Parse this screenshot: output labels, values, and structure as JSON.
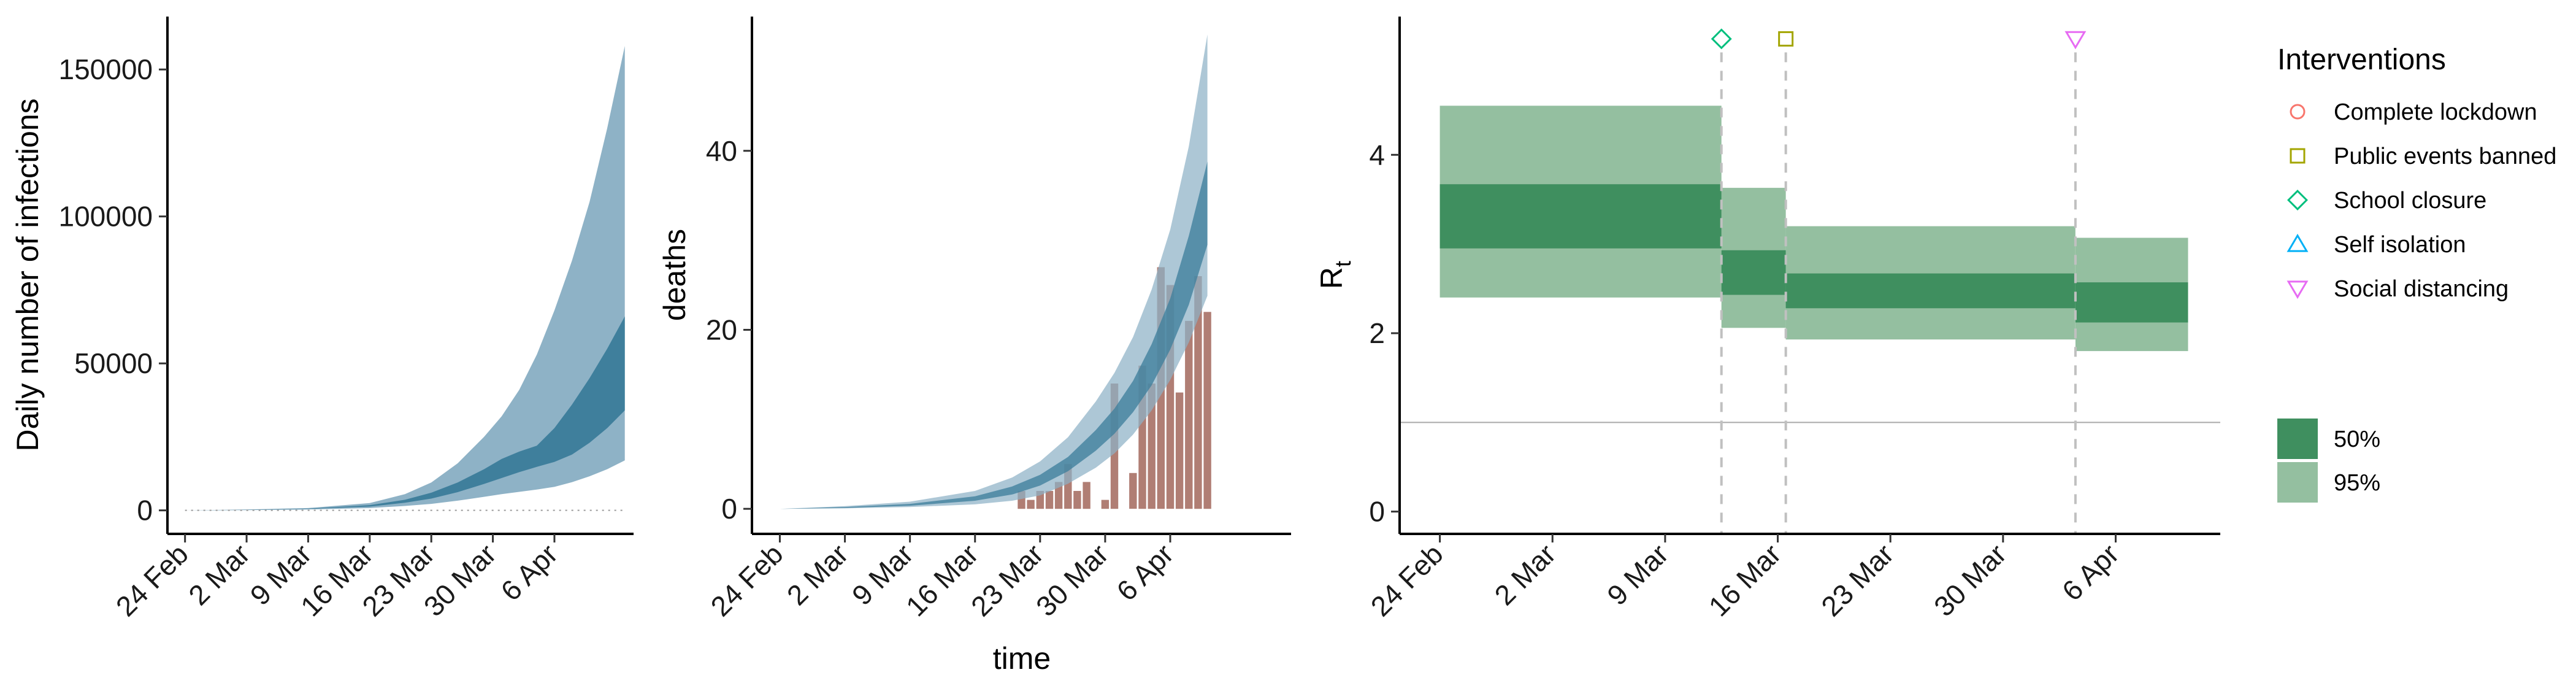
{
  "colors": {
    "band95_blue": "#8eb2c6",
    "band50_blue": "#3f7f9c",
    "observed_bar": "#b07e74",
    "rt50": "#3f8f5f",
    "rt95": "#94bfa0",
    "intervention_line": "#c0c0c0",
    "reference_line": "#a9a9a9",
    "complete_lockdown": "#f8766d",
    "public_events_banned": "#a3a500",
    "school_closure": "#00bf7d",
    "self_isolation": "#00b0f6",
    "social_distancing": "#e76bf3"
  },
  "chart_data": [
    {
      "type": "area",
      "title": "",
      "xlabel": "",
      "ylabel": "Daily number of infections",
      "x_tick_labels": [
        "24 Feb",
        "2 Mar",
        "9 Mar",
        "16 Mar",
        "23 Mar",
        "30 Mar",
        "6 Apr"
      ],
      "x_tick_days": [
        0,
        7,
        14,
        21,
        28,
        35,
        42
      ],
      "y_ticks": [
        0,
        50000,
        100000,
        150000
      ],
      "y_tick_labels": [
        "0",
        "50000",
        "100000",
        "150000"
      ],
      "xlim_days": [
        -2,
        51
      ],
      "ylim": [
        -8000,
        168000
      ],
      "x_days": [
        0,
        7,
        14,
        21,
        25,
        28,
        31,
        34,
        36,
        38,
        40,
        42,
        44,
        46,
        48,
        50
      ],
      "band95": {
        "lower": [
          0,
          100,
          300,
          800,
          1500,
          2200,
          3300,
          4600,
          5500,
          6300,
          7100,
          8000,
          9600,
          11600,
          14000,
          17000
        ],
        "upper": [
          0,
          300,
          800,
          2500,
          5500,
          9500,
          16000,
          25000,
          32000,
          41000,
          53000,
          68000,
          85000,
          105000,
          130000,
          158000
        ]
      },
      "band50": {
        "lower": [
          0,
          150,
          500,
          1300,
          2600,
          4000,
          6200,
          9000,
          11000,
          13000,
          14800,
          16500,
          19000,
          23000,
          28000,
          34000
        ],
        "upper": [
          0,
          200,
          600,
          1800,
          3600,
          6000,
          9500,
          14000,
          17500,
          20000,
          22000,
          28000,
          36000,
          45000,
          55000,
          66000
        ]
      }
    },
    {
      "type": "bar",
      "title": "",
      "xlabel": "time",
      "ylabel": "deaths",
      "x_tick_labels": [
        "24 Feb",
        "2 Mar",
        "9 Mar",
        "16 Mar",
        "23 Mar",
        "30 Mar",
        "6 Apr"
      ],
      "x_tick_days": [
        0,
        7,
        14,
        21,
        28,
        35,
        42
      ],
      "y_ticks": [
        0,
        20,
        40
      ],
      "y_tick_labels": [
        "0",
        "20",
        "40"
      ],
      "xlim_days": [
        -3,
        55
      ],
      "ylim": [
        -2.8,
        55
      ],
      "observed_deaths": {
        "days": [
          26,
          27,
          28,
          29,
          30,
          31,
          32,
          33,
          34,
          35,
          36,
          37,
          38,
          39,
          40,
          41,
          42,
          43,
          44,
          45,
          46
        ],
        "values": [
          2,
          1,
          2,
          2,
          3,
          5,
          2,
          3,
          0,
          1,
          14,
          0,
          4,
          16,
          14,
          27,
          25,
          13,
          21,
          26,
          22
        ]
      },
      "x_days": [
        0,
        7,
        14,
        21,
        25,
        28,
        31,
        34,
        36,
        38,
        40,
        42,
        44,
        46
      ],
      "band95": {
        "lower": [
          0,
          0.05,
          0.2,
          0.5,
          0.9,
          1.5,
          2.8,
          4.6,
          6.2,
          8.3,
          11,
          14.4,
          18.6,
          23.8
        ],
        "upper": [
          0,
          0.3,
          0.8,
          2,
          3.5,
          5.3,
          8,
          12,
          15.2,
          19.2,
          24.5,
          31.2,
          40.5,
          53
        ]
      },
      "band50": {
        "lower": [
          0,
          0.1,
          0.35,
          0.9,
          1.6,
          2.6,
          4.2,
          6.5,
          8.4,
          10.8,
          13.8,
          17.8,
          22.8,
          29.5
        ],
        "upper": [
          0,
          0.2,
          0.55,
          1.4,
          2.5,
          3.8,
          5.8,
          8.8,
          11.2,
          14.3,
          18.4,
          23.5,
          30.5,
          38.8
        ]
      }
    },
    {
      "type": "area",
      "title": "",
      "xlabel": "",
      "ylabel": "R",
      "ylabel_subscript": "t",
      "x_tick_labels": [
        "24 Feb",
        "2 Mar",
        "9 Mar",
        "16 Mar",
        "23 Mar",
        "30 Mar",
        "6 Apr"
      ],
      "x_tick_days": [
        0,
        7,
        14,
        21,
        28,
        35,
        42
      ],
      "y_ticks": [
        0,
        2,
        4
      ],
      "y_tick_labels": [
        "0",
        "2",
        "4"
      ],
      "xlim_days": [
        -2.5,
        48.5
      ],
      "ylim": [
        -0.25,
        5.55
      ],
      "reference_line_y": 1,
      "segments": [
        {
          "start": 0.0,
          "end": 17.5,
          "q95": [
            2.4,
            4.55
          ],
          "q50": [
            2.95,
            3.67
          ]
        },
        {
          "start": 17.5,
          "end": 21.5,
          "q95": [
            2.06,
            3.63
          ],
          "q50": [
            2.43,
            2.93
          ]
        },
        {
          "start": 21.5,
          "end": 39.5,
          "q95": [
            1.93,
            3.2
          ],
          "q50": [
            2.28,
            2.67
          ]
        },
        {
          "start": 39.5,
          "end": 46.5,
          "q95": [
            1.8,
            3.07
          ],
          "q50": [
            2.12,
            2.57
          ]
        }
      ],
      "interventions": [
        {
          "day": 17.5,
          "marker": "diamond",
          "color_key": "school_closure"
        },
        {
          "day": 21.5,
          "marker": "square",
          "color_key": "public_events_banned"
        },
        {
          "day": 39.5,
          "marker": "triangle-down",
          "color_key": "social_distancing"
        }
      ],
      "marker_y": 5.3
    }
  ],
  "legend": {
    "title": "Interventions",
    "items": [
      {
        "label": "Complete lockdown",
        "marker": "circle",
        "color_key": "complete_lockdown"
      },
      {
        "label": "Public events banned",
        "marker": "square",
        "color_key": "public_events_banned"
      },
      {
        "label": "School closure",
        "marker": "diamond",
        "color_key": "school_closure"
      },
      {
        "label": "Self isolation",
        "marker": "triangle-up",
        "color_key": "self_isolation"
      },
      {
        "label": "Social distancing",
        "marker": "triangle-down",
        "color_key": "social_distancing"
      }
    ],
    "fill_items": [
      {
        "label": "50%",
        "color_key": "rt50"
      },
      {
        "label": "95%",
        "color_key": "rt95"
      }
    ]
  }
}
